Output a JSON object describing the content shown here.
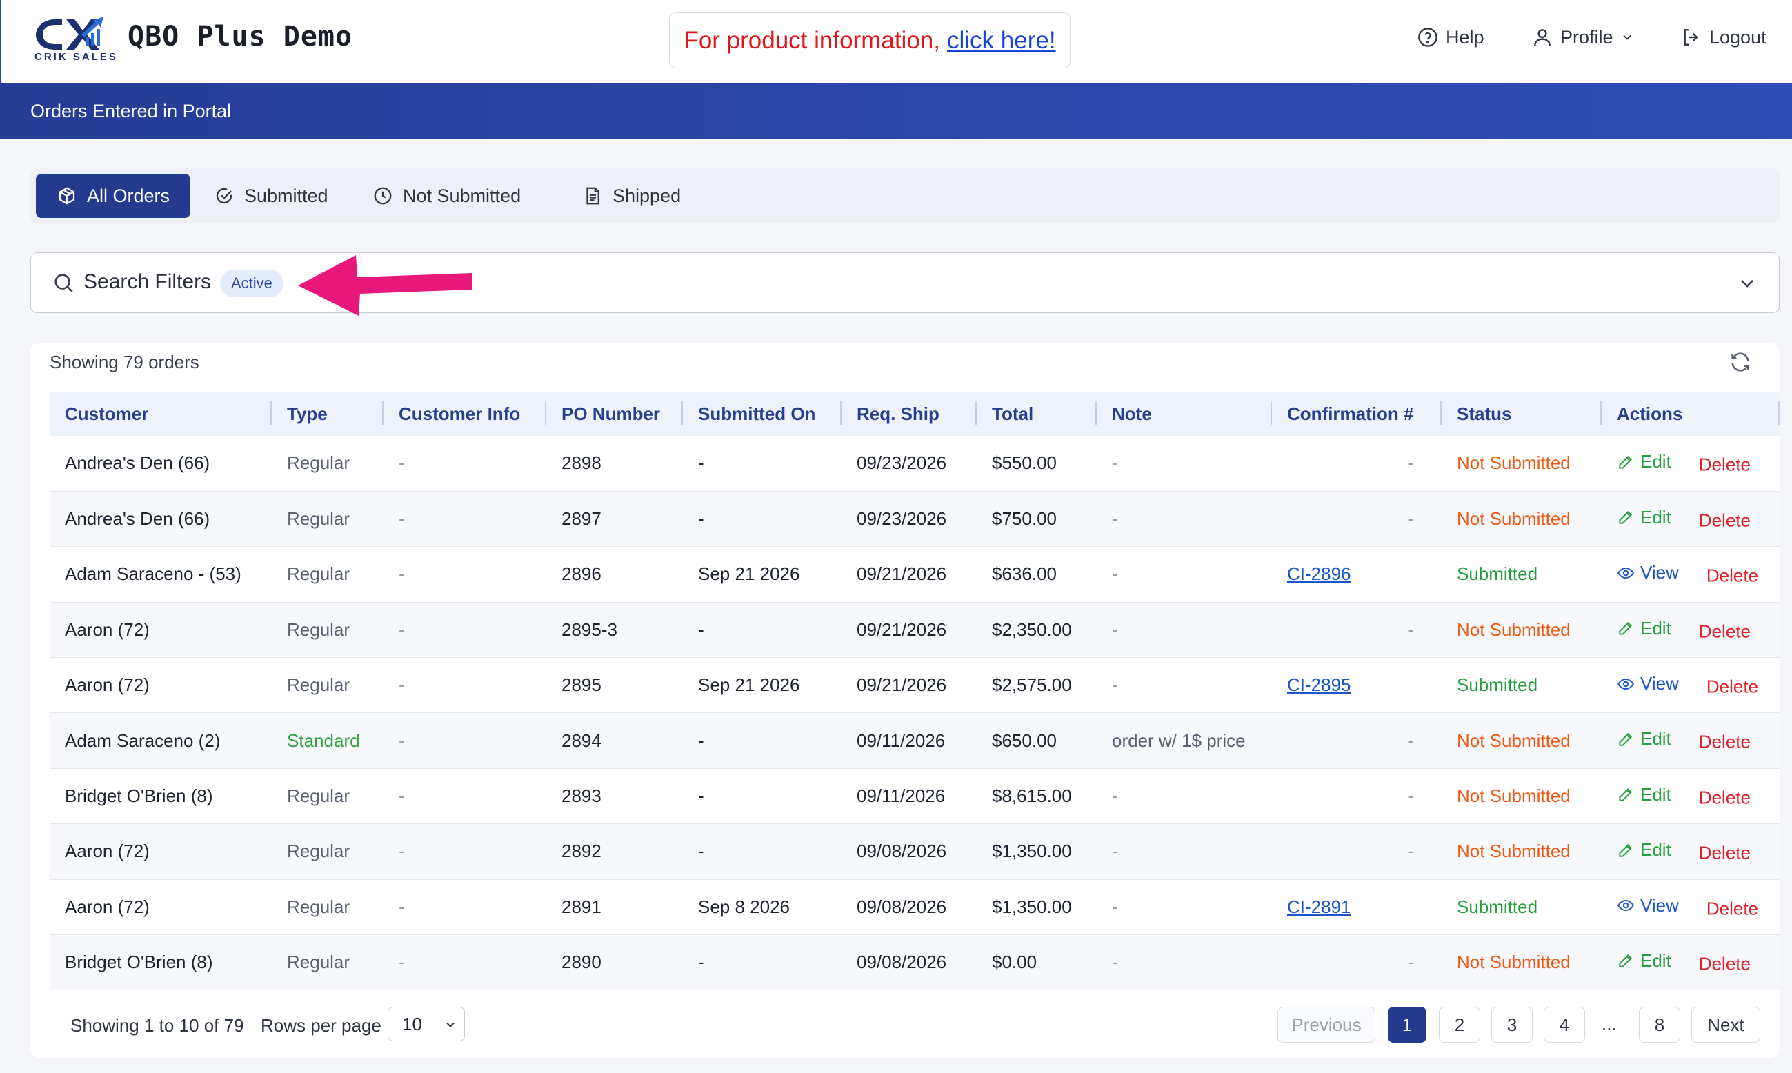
{
  "header": {
    "logo_text": "CRIK SALES",
    "app_title": "QBO Plus Demo",
    "promo_text": "For product information,",
    "promo_link": "click here!",
    "help_label": "Help",
    "profile_label": "Profile",
    "logout_label": "Logout"
  },
  "banner": {
    "title": "Orders Entered in Portal"
  },
  "tabs": [
    {
      "label": "All Orders",
      "icon": "box-icon",
      "active": true
    },
    {
      "label": "Submitted",
      "icon": "check-circle-icon",
      "active": false
    },
    {
      "label": "Not Submitted",
      "icon": "clock-icon",
      "active": false
    },
    {
      "label": "Shipped",
      "icon": "document-icon",
      "active": false
    }
  ],
  "filters": {
    "label": "Search Filters",
    "badge": "Active"
  },
  "colors": {
    "primary": "#233a8f",
    "banner": "#2c47ab",
    "not_submitted": "#ee5a15",
    "submitted": "#22a03a",
    "delete": "#e0202a",
    "arrow": "#e8177a"
  },
  "table": {
    "showing_text": "Showing 79 orders",
    "columns": [
      "Customer",
      "Type",
      "Customer Info",
      "PO Number",
      "Submitted On",
      "Req. Ship",
      "Total",
      "Note",
      "Confirmation #",
      "Status",
      "Actions"
    ],
    "rows": [
      {
        "customer": "Andrea's Den (66)",
        "type": "Regular",
        "info": "-",
        "po": "2898",
        "submitted": "-",
        "req_ship": "09/23/2026",
        "total": "$550.00",
        "note": "-",
        "confirmation": "-",
        "status": "Not Submitted",
        "action": "Edit",
        "delete": "Delete"
      },
      {
        "customer": "Andrea's Den (66)",
        "type": "Regular",
        "info": "-",
        "po": "2897",
        "submitted": "-",
        "req_ship": "09/23/2026",
        "total": "$750.00",
        "note": "-",
        "confirmation": "-",
        "status": "Not Submitted",
        "action": "Edit",
        "delete": "Delete"
      },
      {
        "customer": "Adam Saraceno - (53)",
        "type": "Regular",
        "info": "-",
        "po": "2896",
        "submitted": "Sep 21 2026",
        "req_ship": "09/21/2026",
        "total": "$636.00",
        "note": "-",
        "confirmation": "CI-2896",
        "status": "Submitted",
        "action": "View",
        "delete": "Delete"
      },
      {
        "customer": "Aaron (72)",
        "type": "Regular",
        "info": "-",
        "po": "2895-3",
        "submitted": "-",
        "req_ship": "09/21/2026",
        "total": "$2,350.00",
        "note": "-",
        "confirmation": "-",
        "status": "Not Submitted",
        "action": "Edit",
        "delete": "Delete"
      },
      {
        "customer": "Aaron (72)",
        "type": "Regular",
        "info": "-",
        "po": "2895",
        "submitted": "Sep 21 2026",
        "req_ship": "09/21/2026",
        "total": "$2,575.00",
        "note": "-",
        "confirmation": "CI-2895",
        "status": "Submitted",
        "action": "View",
        "delete": "Delete"
      },
      {
        "customer": "Adam Saraceno (2)",
        "type": "Standard",
        "info": "-",
        "po": "2894",
        "submitted": "-",
        "req_ship": "09/11/2026",
        "total": "$650.00",
        "note": "order w/ 1$ price",
        "confirmation": "-",
        "status": "Not Submitted",
        "action": "Edit",
        "delete": "Delete"
      },
      {
        "customer": "Bridget O'Brien (8)",
        "type": "Regular",
        "info": "-",
        "po": "2893",
        "submitted": "-",
        "req_ship": "09/11/2026",
        "total": "$8,615.00",
        "note": "-",
        "confirmation": "-",
        "status": "Not Submitted",
        "action": "Edit",
        "delete": "Delete"
      },
      {
        "customer": "Aaron (72)",
        "type": "Regular",
        "info": "-",
        "po": "2892",
        "submitted": "-",
        "req_ship": "09/08/2026",
        "total": "$1,350.00",
        "note": "-",
        "confirmation": "-",
        "status": "Not Submitted",
        "action": "Edit",
        "delete": "Delete"
      },
      {
        "customer": "Aaron (72)",
        "type": "Regular",
        "info": "-",
        "po": "2891",
        "submitted": "Sep 8 2026",
        "req_ship": "09/08/2026",
        "total": "$1,350.00",
        "note": "-",
        "confirmation": "CI-2891",
        "status": "Submitted",
        "action": "View",
        "delete": "Delete"
      },
      {
        "customer": "Bridget O'Brien (8)",
        "type": "Regular",
        "info": "-",
        "po": "2890",
        "submitted": "-",
        "req_ship": "09/08/2026",
        "total": "$0.00",
        "note": "-",
        "confirmation": "-",
        "status": "Not Submitted",
        "action": "Edit",
        "delete": "Delete"
      }
    ]
  },
  "pagination": {
    "info": "Showing 1 to 10 of 79",
    "rows_per_page_label": "Rows per page",
    "rows_per_page_value": "10",
    "previous": "Previous",
    "pages": [
      "1",
      "2",
      "3",
      "4",
      "8"
    ],
    "ellipsis": "...",
    "current": "1",
    "next": "Next"
  }
}
